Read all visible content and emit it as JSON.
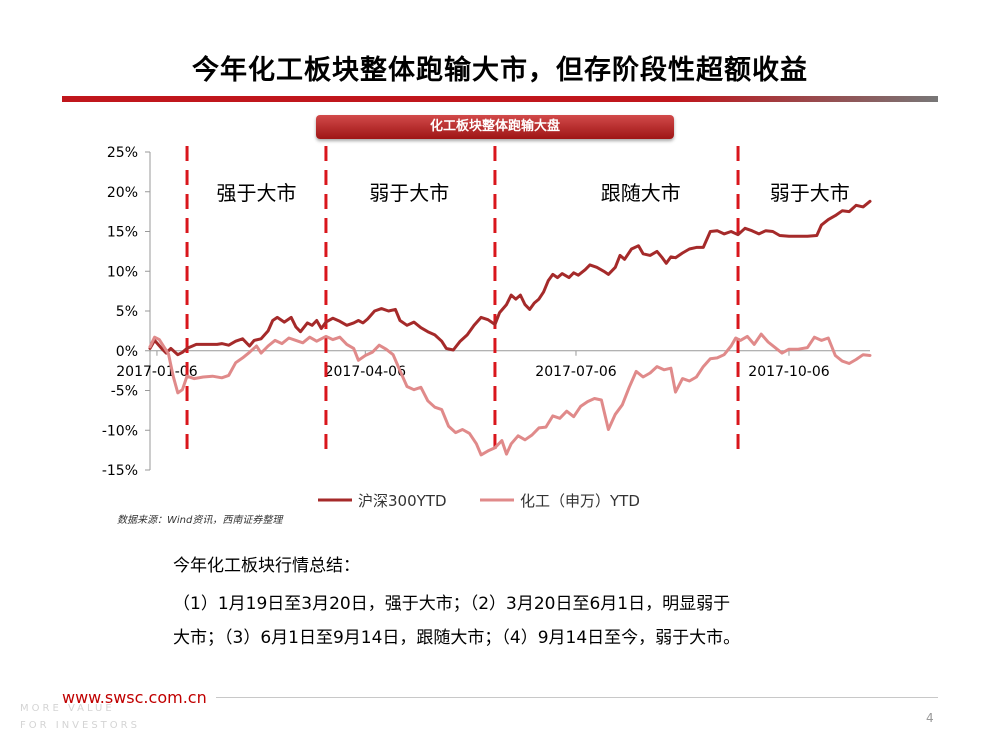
{
  "slide": {
    "title": "今年化工板块整体跑输大市，但存阶段性超额收益",
    "accent_color": "#c0161c",
    "source_note": "数据来源：Wind资讯，西南证券整理",
    "summary_heading": "今年化工板块行情总结：",
    "summary_line1": "（1）1月19日至3月20日，强于大市；（2）3月20日至6月1日，明显弱于",
    "summary_line2": "大市；（3）6月1日至9月14日，跟随大市；（4）9月14日至今，弱于大市。",
    "footer_url": "www.swsc.com.cn",
    "tagline_line1": "MORE VALUE",
    "tagline_line2": "FOR INVESTORS",
    "page_number": "4"
  },
  "chart_data": {
    "type": "line",
    "title": "化工板块整体跑输大盘",
    "ylim": [
      -15,
      25
    ],
    "yticks": [
      25,
      20,
      15,
      10,
      5,
      0,
      -5,
      -10,
      -15
    ],
    "ytick_format": "percent",
    "xlim": [
      "2017-01-03",
      "2017-11-10"
    ],
    "x_ticks": [
      "2017-01-06",
      "2017-04-06",
      "2017-07-06",
      "2017-10-06"
    ],
    "grid": false,
    "legend_position": "bottom",
    "series": [
      {
        "name": "沪深300YTD",
        "color": "#a52a2a",
        "points": [
          [
            "2017-01-03",
            0.3
          ],
          [
            "2017-01-05",
            1.3
          ],
          [
            "2017-01-08",
            0.3
          ],
          [
            "2017-01-10",
            -0.3
          ],
          [
            "2017-01-12",
            0.3
          ],
          [
            "2017-01-15",
            -0.5
          ],
          [
            "2017-01-17",
            -0.2
          ],
          [
            "2017-01-19",
            0.3
          ],
          [
            "2017-01-23",
            0.8
          ],
          [
            "2017-01-27",
            0.8
          ],
          [
            "2017-02-01",
            0.8
          ],
          [
            "2017-02-03",
            0.9
          ],
          [
            "2017-02-06",
            0.7
          ],
          [
            "2017-02-09",
            1.2
          ],
          [
            "2017-02-12",
            1.5
          ],
          [
            "2017-02-15",
            0.6
          ],
          [
            "2017-02-17",
            1.3
          ],
          [
            "2017-02-20",
            1.5
          ],
          [
            "2017-02-23",
            2.5
          ],
          [
            "2017-02-25",
            3.8
          ],
          [
            "2017-02-27",
            4.2
          ],
          [
            "2017-03-02",
            3.6
          ],
          [
            "2017-03-05",
            4.2
          ],
          [
            "2017-03-07",
            3.0
          ],
          [
            "2017-03-09",
            2.4
          ],
          [
            "2017-03-12",
            3.5
          ],
          [
            "2017-03-14",
            3.2
          ],
          [
            "2017-03-16",
            3.8
          ],
          [
            "2017-03-18",
            2.8
          ],
          [
            "2017-03-20",
            3.6
          ],
          [
            "2017-03-23",
            4.1
          ],
          [
            "2017-03-26",
            3.7
          ],
          [
            "2017-03-29",
            3.2
          ],
          [
            "2017-04-01",
            3.5
          ],
          [
            "2017-04-03",
            3.8
          ],
          [
            "2017-04-05",
            3.5
          ],
          [
            "2017-04-07",
            4.0
          ],
          [
            "2017-04-10",
            5.0
          ],
          [
            "2017-04-13",
            5.3
          ],
          [
            "2017-04-16",
            5.0
          ],
          [
            "2017-04-19",
            5.2
          ],
          [
            "2017-04-21",
            3.8
          ],
          [
            "2017-04-24",
            3.2
          ],
          [
            "2017-04-27",
            3.6
          ],
          [
            "2017-04-30",
            2.9
          ],
          [
            "2017-05-03",
            2.4
          ],
          [
            "2017-05-06",
            2.0
          ],
          [
            "2017-05-09",
            1.2
          ],
          [
            "2017-05-11",
            0.3
          ],
          [
            "2017-05-14",
            0.1
          ],
          [
            "2017-05-17",
            1.2
          ],
          [
            "2017-05-20",
            2.0
          ],
          [
            "2017-05-23",
            3.2
          ],
          [
            "2017-05-26",
            4.2
          ],
          [
            "2017-05-29",
            3.9
          ],
          [
            "2017-06-01",
            3.3
          ],
          [
            "2017-06-03",
            4.8
          ],
          [
            "2017-06-06",
            5.8
          ],
          [
            "2017-06-08",
            7.0
          ],
          [
            "2017-06-10",
            6.5
          ],
          [
            "2017-06-12",
            7.0
          ],
          [
            "2017-06-14",
            5.8
          ],
          [
            "2017-06-16",
            5.2
          ],
          [
            "2017-06-18",
            6.0
          ],
          [
            "2017-06-20",
            6.5
          ],
          [
            "2017-06-22",
            7.4
          ],
          [
            "2017-06-24",
            8.8
          ],
          [
            "2017-06-26",
            9.6
          ],
          [
            "2017-06-28",
            9.2
          ],
          [
            "2017-06-30",
            9.7
          ],
          [
            "2017-07-03",
            9.2
          ],
          [
            "2017-07-05",
            9.8
          ],
          [
            "2017-07-07",
            9.5
          ],
          [
            "2017-07-10",
            10.2
          ],
          [
            "2017-07-12",
            10.8
          ],
          [
            "2017-07-15",
            10.5
          ],
          [
            "2017-07-18",
            10.0
          ],
          [
            "2017-07-20",
            9.6
          ],
          [
            "2017-07-23",
            10.5
          ],
          [
            "2017-07-25",
            12.0
          ],
          [
            "2017-07-27",
            11.5
          ],
          [
            "2017-07-30",
            12.8
          ],
          [
            "2017-08-02",
            13.2
          ],
          [
            "2017-08-04",
            12.2
          ],
          [
            "2017-08-07",
            12.0
          ],
          [
            "2017-08-10",
            12.5
          ],
          [
            "2017-08-12",
            11.8
          ],
          [
            "2017-08-14",
            11.0
          ],
          [
            "2017-08-16",
            11.8
          ],
          [
            "2017-08-18",
            11.7
          ],
          [
            "2017-08-21",
            12.3
          ],
          [
            "2017-08-24",
            12.8
          ],
          [
            "2017-08-27",
            13.0
          ],
          [
            "2017-08-30",
            13.0
          ],
          [
            "2017-09-02",
            15.0
          ],
          [
            "2017-09-05",
            15.1
          ],
          [
            "2017-09-08",
            14.7
          ],
          [
            "2017-09-11",
            15.0
          ],
          [
            "2017-09-14",
            14.6
          ],
          [
            "2017-09-17",
            15.4
          ],
          [
            "2017-09-20",
            15.1
          ],
          [
            "2017-09-23",
            14.7
          ],
          [
            "2017-09-26",
            15.1
          ],
          [
            "2017-09-29",
            15.0
          ],
          [
            "2017-10-02",
            14.5
          ],
          [
            "2017-10-06",
            14.4
          ],
          [
            "2017-10-10",
            14.4
          ],
          [
            "2017-10-14",
            14.4
          ],
          [
            "2017-10-18",
            14.5
          ],
          [
            "2017-10-20",
            15.8
          ],
          [
            "2017-10-23",
            16.5
          ],
          [
            "2017-10-26",
            17.0
          ],
          [
            "2017-10-29",
            17.6
          ],
          [
            "2017-11-01",
            17.5
          ],
          [
            "2017-11-04",
            18.3
          ],
          [
            "2017-11-07",
            18.1
          ],
          [
            "2017-11-10",
            18.8
          ]
        ]
      },
      {
        "name": "化工（申万）YTD",
        "color": "#e08a8a",
        "points": [
          [
            "2017-01-03",
            0.5
          ],
          [
            "2017-01-05",
            1.7
          ],
          [
            "2017-01-07",
            1.4
          ],
          [
            "2017-01-09",
            0.5
          ],
          [
            "2017-01-11",
            -0.4
          ],
          [
            "2017-01-13",
            -3.2
          ],
          [
            "2017-01-15",
            -5.3
          ],
          [
            "2017-01-17",
            -4.9
          ],
          [
            "2017-01-19",
            -3.2
          ],
          [
            "2017-01-22",
            -3.5
          ],
          [
            "2017-01-26",
            -3.3
          ],
          [
            "2017-01-30",
            -3.2
          ],
          [
            "2017-02-03",
            -3.4
          ],
          [
            "2017-02-06",
            -3.1
          ],
          [
            "2017-02-09",
            -1.5
          ],
          [
            "2017-02-12",
            -0.9
          ],
          [
            "2017-02-15",
            -0.2
          ],
          [
            "2017-02-18",
            0.6
          ],
          [
            "2017-02-20",
            -0.3
          ],
          [
            "2017-02-23",
            0.6
          ],
          [
            "2017-02-26",
            1.3
          ],
          [
            "2017-03-01",
            0.9
          ],
          [
            "2017-03-04",
            1.6
          ],
          [
            "2017-03-07",
            1.3
          ],
          [
            "2017-03-10",
            1.0
          ],
          [
            "2017-03-13",
            1.7
          ],
          [
            "2017-03-16",
            1.2
          ],
          [
            "2017-03-20",
            1.8
          ],
          [
            "2017-03-23",
            1.4
          ],
          [
            "2017-03-26",
            1.7
          ],
          [
            "2017-03-29",
            0.8
          ],
          [
            "2017-04-01",
            0.3
          ],
          [
            "2017-04-03",
            -1.2
          ],
          [
            "2017-04-06",
            -0.6
          ],
          [
            "2017-04-09",
            -0.2
          ],
          [
            "2017-04-12",
            0.7
          ],
          [
            "2017-04-15",
            0.2
          ],
          [
            "2017-04-18",
            -0.5
          ],
          [
            "2017-04-21",
            -2.5
          ],
          [
            "2017-04-24",
            -4.5
          ],
          [
            "2017-04-27",
            -4.9
          ],
          [
            "2017-04-30",
            -4.6
          ],
          [
            "2017-05-03",
            -6.3
          ],
          [
            "2017-05-06",
            -7.1
          ],
          [
            "2017-05-09",
            -7.4
          ],
          [
            "2017-05-12",
            -9.5
          ],
          [
            "2017-05-15",
            -10.3
          ],
          [
            "2017-05-18",
            -9.9
          ],
          [
            "2017-05-21",
            -10.4
          ],
          [
            "2017-05-24",
            -11.7
          ],
          [
            "2017-05-26",
            -13.1
          ],
          [
            "2017-05-29",
            -12.6
          ],
          [
            "2017-06-01",
            -12.2
          ],
          [
            "2017-06-04",
            -11.3
          ],
          [
            "2017-06-06",
            -13.0
          ],
          [
            "2017-06-08",
            -11.7
          ],
          [
            "2017-06-11",
            -10.7
          ],
          [
            "2017-06-14",
            -11.2
          ],
          [
            "2017-06-17",
            -10.6
          ],
          [
            "2017-06-20",
            -9.7
          ],
          [
            "2017-06-23",
            -9.6
          ],
          [
            "2017-06-26",
            -8.2
          ],
          [
            "2017-06-29",
            -8.5
          ],
          [
            "2017-07-02",
            -7.6
          ],
          [
            "2017-07-05",
            -8.3
          ],
          [
            "2017-07-08",
            -7.0
          ],
          [
            "2017-07-11",
            -6.4
          ],
          [
            "2017-07-14",
            -6.0
          ],
          [
            "2017-07-17",
            -6.2
          ],
          [
            "2017-07-20",
            -9.9
          ],
          [
            "2017-07-23",
            -8.0
          ],
          [
            "2017-07-26",
            -6.8
          ],
          [
            "2017-07-29",
            -4.6
          ],
          [
            "2017-08-01",
            -2.6
          ],
          [
            "2017-08-04",
            -3.3
          ],
          [
            "2017-08-07",
            -2.8
          ],
          [
            "2017-08-10",
            -2.0
          ],
          [
            "2017-08-13",
            -2.4
          ],
          [
            "2017-08-16",
            -2.2
          ],
          [
            "2017-08-18",
            -5.2
          ],
          [
            "2017-08-21",
            -3.5
          ],
          [
            "2017-08-24",
            -3.8
          ],
          [
            "2017-08-27",
            -3.3
          ],
          [
            "2017-08-30",
            -2.0
          ],
          [
            "2017-09-02",
            -1.0
          ],
          [
            "2017-09-05",
            -0.9
          ],
          [
            "2017-09-08",
            -0.5
          ],
          [
            "2017-09-11",
            0.6
          ],
          [
            "2017-09-13",
            1.6
          ],
          [
            "2017-09-15",
            1.3
          ],
          [
            "2017-09-18",
            1.8
          ],
          [
            "2017-09-21",
            0.8
          ],
          [
            "2017-09-24",
            2.1
          ],
          [
            "2017-09-27",
            1.1
          ],
          [
            "2017-09-30",
            0.4
          ],
          [
            "2017-10-03",
            -0.3
          ],
          [
            "2017-10-06",
            0.2
          ],
          [
            "2017-10-10",
            0.2
          ],
          [
            "2017-10-14",
            0.4
          ],
          [
            "2017-10-17",
            1.7
          ],
          [
            "2017-10-20",
            1.3
          ],
          [
            "2017-10-23",
            1.6
          ],
          [
            "2017-10-26",
            -0.6
          ],
          [
            "2017-10-29",
            -1.3
          ],
          [
            "2017-11-01",
            -1.6
          ],
          [
            "2017-11-04",
            -1.1
          ],
          [
            "2017-11-07",
            -0.5
          ],
          [
            "2017-11-10",
            -0.6
          ]
        ]
      }
    ],
    "phase_dividers": [
      "2017-01-19",
      "2017-03-20",
      "2017-06-01",
      "2017-09-14"
    ],
    "phase_labels": [
      {
        "label": "强于大市",
        "x": "2017-02-18",
        "y": 20
      },
      {
        "label": "弱于大市",
        "x": "2017-04-25",
        "y": 20
      },
      {
        "label": "跟随大市",
        "x": "2017-08-03",
        "y": 20
      },
      {
        "label": "弱于大市",
        "x": "2017-10-15",
        "y": 20
      }
    ]
  }
}
